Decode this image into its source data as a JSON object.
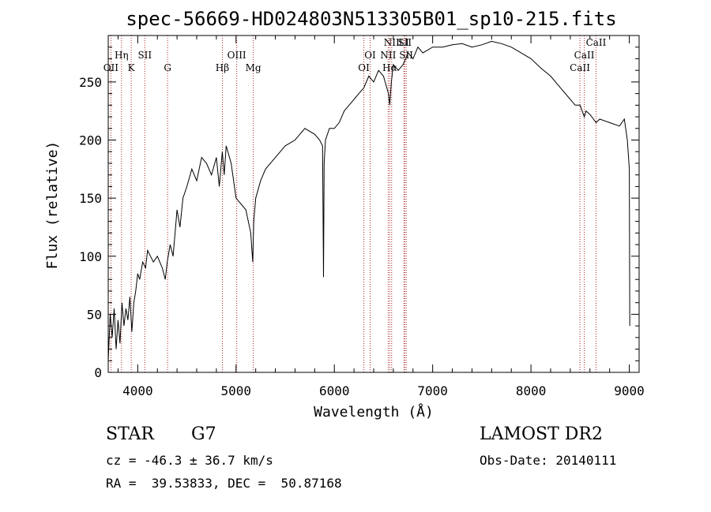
{
  "chart_data": {
    "type": "line",
    "title": "spec-56669-HD024803N513305B01_sp10-215.fits",
    "xlabel": "Wavelength (Å)",
    "ylabel": "Flux (relative)",
    "xlim": [
      3700,
      9100
    ],
    "ylim": [
      0,
      290
    ],
    "xticks": [
      4000,
      5000,
      6000,
      7000,
      8000,
      9000
    ],
    "yticks": [
      0,
      50,
      100,
      150,
      200,
      250
    ],
    "grid": false,
    "legend": "none",
    "series": [
      {
        "x": [
          3700,
          3720,
          3740,
          3760,
          3780,
          3800,
          3820,
          3840,
          3860,
          3880,
          3900,
          3920,
          3940,
          3960,
          3980,
          4000,
          4020,
          4050,
          4080,
          4100,
          4130,
          4160,
          4200,
          4250,
          4280,
          4300,
          4330,
          4360,
          4400,
          4430,
          4460,
          4500,
          4550,
          4600,
          4650,
          4700,
          4750,
          4800,
          4830,
          4860,
          4880,
          4900,
          4950,
          5000,
          5050,
          5100,
          5150,
          5170,
          5180,
          5200,
          5250,
          5300,
          5400,
          5500,
          5600,
          5700,
          5800,
          5850,
          5880,
          5890,
          5896,
          5910,
          5950,
          6000,
          6050,
          6100,
          6150,
          6200,
          6250,
          6300,
          6350,
          6400,
          6450,
          6500,
          6550,
          6563,
          6580,
          6600,
          6650,
          6700,
          6750,
          6800,
          6850,
          6900,
          7000,
          7100,
          7200,
          7300,
          7400,
          7500,
          7600,
          7700,
          7800,
          7900,
          8000,
          8100,
          8200,
          8300,
          8400,
          8450,
          8500,
          8542,
          8560,
          8600,
          8662,
          8700,
          8800,
          8900,
          8950,
          8980,
          9000,
          9005
        ],
        "y": [
          10,
          50,
          30,
          55,
          20,
          45,
          25,
          60,
          40,
          55,
          45,
          65,
          35,
          60,
          70,
          85,
          80,
          95,
          90,
          105,
          100,
          95,
          100,
          90,
          80,
          95,
          110,
          100,
          140,
          125,
          150,
          160,
          175,
          165,
          185,
          180,
          170,
          185,
          160,
          190,
          170,
          195,
          180,
          150,
          145,
          140,
          120,
          95,
          130,
          150,
          165,
          175,
          185,
          195,
          200,
          210,
          205,
          200,
          195,
          82,
          180,
          200,
          210,
          210,
          215,
          225,
          230,
          235,
          240,
          245,
          255,
          250,
          260,
          255,
          240,
          230,
          250,
          265,
          260,
          265,
          275,
          270,
          280,
          275,
          280,
          280,
          282,
          283,
          280,
          282,
          285,
          283,
          280,
          275,
          270,
          262,
          255,
          245,
          235,
          230,
          230,
          220,
          225,
          222,
          215,
          218,
          215,
          212,
          218,
          200,
          175,
          40
        ]
      }
    ],
    "annotations": [
      {
        "label": "OII",
        "x": 3727
      },
      {
        "label": "Hη",
        "x": 3835
      },
      {
        "label": "K",
        "x": 3934
      },
      {
        "label": "SII",
        "x": 4072
      },
      {
        "label": "G",
        "x": 4304
      },
      {
        "label": "Hβ",
        "x": 4861
      },
      {
        "label": "OIII",
        "x": 5007
      },
      {
        "label": "Mg",
        "x": 5175
      },
      {
        "label": "OI",
        "x": 6300
      },
      {
        "label": "OI",
        "x": 6364
      },
      {
        "label": "Hα",
        "x": 6563
      },
      {
        "label": "NII",
        "x": 6548
      },
      {
        "label": "NII",
        "x": 6583
      },
      {
        "label": "SII",
        "x": 6716
      },
      {
        "label": "SII",
        "x": 6731
      },
      {
        "label": "LI",
        "x": 6708
      },
      {
        "label": "CaII",
        "x": 8498
      },
      {
        "label": "CaII",
        "x": 8542
      },
      {
        "label": "CaII",
        "x": 8662
      }
    ]
  },
  "info": {
    "object_class": "STAR",
    "subclass": "G7",
    "survey": "LAMOST DR2",
    "cz": "cz = -46.3 ± 36.7 km/s",
    "coords": "RA =  39.53833, DEC =  50.87168",
    "obs_date": "Obs-Date: 20140111"
  }
}
